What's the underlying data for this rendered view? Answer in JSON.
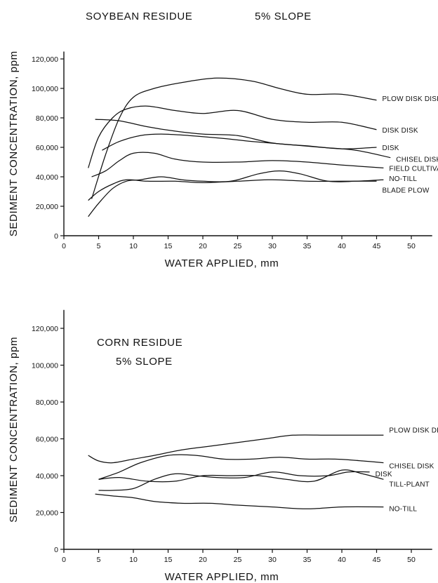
{
  "chart_data": [
    {
      "type": "line",
      "title": "SOYBEAN RESIDUE",
      "subtitle": "5% SLOPE",
      "xlabel": "WATER APPLIED, mm",
      "ylabel": "SEDIMENT CONCENTRATION, ppm",
      "xlim": [
        0,
        53
      ],
      "ylim": [
        0,
        125000
      ],
      "xticks": [
        0,
        5,
        10,
        15,
        20,
        25,
        30,
        35,
        40,
        45,
        50
      ],
      "yticks": [
        0,
        20000,
        40000,
        60000,
        80000,
        100000,
        120000
      ],
      "ytick_labels": [
        "0",
        "20,000",
        "40,000",
        "60,000",
        "80,000",
        "100,000",
        "120,000"
      ],
      "grid": false,
      "legend": "labels at right end of each line",
      "series": [
        {
          "name": "PLOW DISK DISK",
          "x": [
            4,
            6,
            8,
            10,
            13,
            17,
            22,
            27,
            31,
            35,
            40,
            45
          ],
          "y": [
            25000,
            55000,
            80000,
            94000,
            100000,
            104000,
            107000,
            105000,
            100000,
            96000,
            96000,
            92000
          ]
        },
        {
          "name": "DISK DISK",
          "x": [
            3.5,
            5,
            7,
            9,
            12,
            16,
            20,
            25,
            30,
            35,
            40,
            45
          ],
          "y": [
            46000,
            67000,
            80000,
            86000,
            88000,
            85000,
            83000,
            85000,
            79000,
            77000,
            77000,
            72000
          ]
        },
        {
          "name": "DISK",
          "x": [
            4.5,
            8,
            12,
            16,
            20,
            25,
            30,
            35,
            40,
            45
          ],
          "y": [
            79000,
            78000,
            74000,
            71000,
            69000,
            68000,
            63000,
            61000,
            59000,
            60000
          ]
        },
        {
          "name": "CHISEL DISK",
          "x": [
            5.5,
            8,
            11,
            14,
            18,
            23,
            27,
            32,
            37,
            42,
            47
          ],
          "y": [
            58000,
            64000,
            68000,
            69000,
            68000,
            66000,
            64000,
            62000,
            60000,
            58000,
            53000
          ]
        },
        {
          "name": "FIELD CULTIVATE",
          "x": [
            4,
            6,
            8,
            10,
            13,
            16,
            20,
            25,
            30,
            35,
            40,
            46
          ],
          "y": [
            40000,
            44000,
            51000,
            56000,
            56000,
            52000,
            50000,
            50000,
            51000,
            50000,
            48000,
            46000
          ]
        },
        {
          "name": "NO-TILL",
          "x": [
            3.5,
            5,
            7,
            9,
            11,
            14,
            17,
            20,
            24,
            28,
            31,
            34,
            38,
            42,
            46
          ],
          "y": [
            13000,
            22000,
            32000,
            37000,
            38000,
            40000,
            38000,
            37000,
            37000,
            42000,
            44000,
            42000,
            37000,
            37000,
            38000
          ]
        },
        {
          "name": "BLADE PLOW",
          "x": [
            3.5,
            5,
            7,
            9,
            12,
            16,
            20,
            25,
            30,
            35,
            40,
            45
          ],
          "y": [
            24000,
            30000,
            35000,
            38000,
            37000,
            37000,
            36000,
            37000,
            38000,
            37000,
            37000,
            37000
          ]
        }
      ]
    },
    {
      "type": "line",
      "title": "CORN RESIDUE",
      "subtitle": "5% SLOPE",
      "xlabel": "WATER APPLIED, mm",
      "ylabel": "SEDIMENT CONCENTRATION, ppm",
      "xlim": [
        0,
        53
      ],
      "ylim": [
        0,
        130000
      ],
      "xticks": [
        0,
        5,
        10,
        15,
        20,
        25,
        30,
        35,
        40,
        45,
        50
      ],
      "yticks": [
        0,
        20000,
        40000,
        60000,
        80000,
        100000,
        120000
      ],
      "ytick_labels": [
        "0",
        "20,000",
        "40,000",
        "60,000",
        "80,000",
        "100,000",
        "120,000"
      ],
      "grid": false,
      "legend": "labels at right end of each line",
      "series": [
        {
          "name": "PLOW DISK DISK",
          "x": [
            3.5,
            5,
            7,
            10,
            13,
            17,
            21,
            25,
            29,
            33,
            38,
            42,
            46
          ],
          "y": [
            51000,
            48000,
            47000,
            49000,
            51000,
            54000,
            56000,
            58000,
            60000,
            62000,
            62000,
            62000,
            62000
          ]
        },
        {
          "name": "CHISEL DISK",
          "x": [
            5,
            8,
            11,
            15,
            19,
            23,
            27,
            31,
            35,
            39,
            43,
            46
          ],
          "y": [
            38000,
            42000,
            47000,
            51000,
            51000,
            49000,
            49000,
            50000,
            49000,
            49000,
            48000,
            47000
          ]
        },
        {
          "name": "DISK",
          "x": [
            5,
            7,
            10,
            13,
            16,
            19,
            22,
            26,
            30,
            34,
            38,
            41,
            44
          ],
          "y": [
            32000,
            32000,
            33000,
            38000,
            41000,
            40000,
            39000,
            39000,
            42000,
            40000,
            40000,
            42000,
            42000
          ]
        },
        {
          "name": "TILL-PLANT",
          "x": [
            5,
            8,
            12,
            16,
            20,
            24,
            28,
            32,
            36,
            40,
            43,
            46
          ],
          "y": [
            38000,
            39000,
            37000,
            37000,
            40000,
            40000,
            40000,
            38000,
            37000,
            43000,
            41000,
            38000
          ]
        },
        {
          "name": "NO-TILL",
          "x": [
            4.5,
            7,
            10,
            13,
            17,
            21,
            25,
            30,
            35,
            40,
            46
          ],
          "y": [
            30000,
            29000,
            28000,
            26000,
            25000,
            25000,
            24000,
            23000,
            22000,
            23000,
            23000
          ]
        }
      ]
    }
  ]
}
